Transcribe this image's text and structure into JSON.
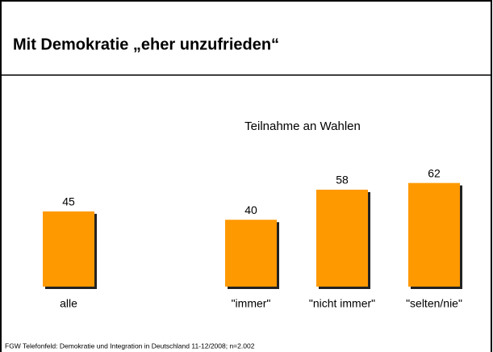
{
  "chart_data": {
    "type": "bar",
    "title": "Mit Demokratie „eher unzufrieden“",
    "subtitle": "Teilnahme an Wahlen",
    "categories": [
      "alle",
      "\"immer\"",
      "\"nicht immer\"",
      "\"selten/nie\""
    ],
    "values": [
      45,
      40,
      58,
      62
    ],
    "color": "#ff9900",
    "footnote": "FGW Telefonfeld: Demokratie und Integration  in Deutschland 11-12/2008; n=2.002"
  }
}
